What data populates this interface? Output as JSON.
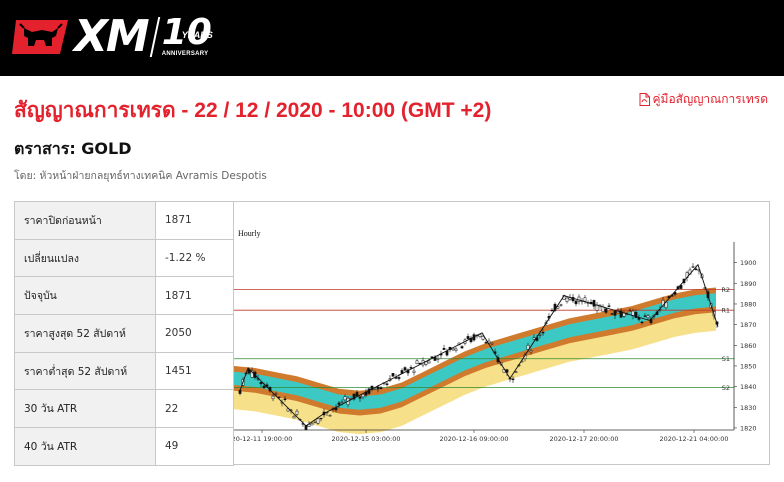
{
  "brand": {
    "logo_text": "XM",
    "anniversary_number": "10",
    "anniversary_years": "YEARS",
    "anniversary_label": "ANNIVERSARY"
  },
  "header": {
    "title": "สัญญาณการเทรด - 22 / 12 / 2020 - 10:00 (GMT +2)",
    "guide_link": "คู่มือสัญญาณการเทรด",
    "symbol": "ตราสาร: GOLD",
    "author": "โดย: หัวหน้าฝ่ายกลยุทธ์ทางเทคนิค Avramis Despotis"
  },
  "stats": [
    {
      "label": "ราคาปิดก่อนหน้า",
      "value": "1871"
    },
    {
      "label": "เปลี่ยนแปลง",
      "value": "-1.22 %"
    },
    {
      "label": "ปัจจุบัน",
      "value": "1871"
    },
    {
      "label": "ราคาสูงสุด 52 สัปดาห์",
      "value": "2050"
    },
    {
      "label": "ราคาต่ำสุด 52 สัปดาห์",
      "value": "1451"
    },
    {
      "label": "30 วัน ATR",
      "value": "22"
    },
    {
      "label": "40 วัน ATR",
      "value": "49"
    }
  ],
  "chart_data": {
    "type": "line",
    "title": "Hourly",
    "y_ticks": [
      1820,
      1830,
      1840,
      1850,
      1860,
      1870,
      1880,
      1890,
      1900
    ],
    "ylim": [
      1819,
      1910
    ],
    "x_ticks": [
      "20-12-11 19:00:00",
      "2020-12-15 03:00:00",
      "2020-12-16 09:00:00",
      "2020-12-17 20:00:00",
      "2020-12-21 04:00:00"
    ],
    "levels": [
      {
        "name": "R2",
        "value": 1887,
        "color": "#c0392b"
      },
      {
        "name": "R1",
        "value": 1877,
        "color": "#c0392b"
      },
      {
        "name": "S1",
        "value": 1853.5,
        "color": "#2e8b2e"
      },
      {
        "name": "S2",
        "value": 1839.5,
        "color": "#2e8b2e"
      }
    ],
    "zigzag": [
      1838,
      1849,
      1821,
      1827,
      1866,
      1844,
      1884,
      1872,
      1899,
      1869
    ],
    "bands": {
      "outer_color": "#f7e08a",
      "middle_color": "#cf7a2c",
      "inner_color": "#3cc9c4",
      "center": [
        1844,
        1843,
        1841,
        1839,
        1836,
        1833,
        1832,
        1833,
        1836,
        1841,
        1846,
        1851,
        1855,
        1858,
        1861,
        1864,
        1867,
        1869,
        1871,
        1873,
        1876,
        1879,
        1881,
        1882
      ]
    }
  }
}
